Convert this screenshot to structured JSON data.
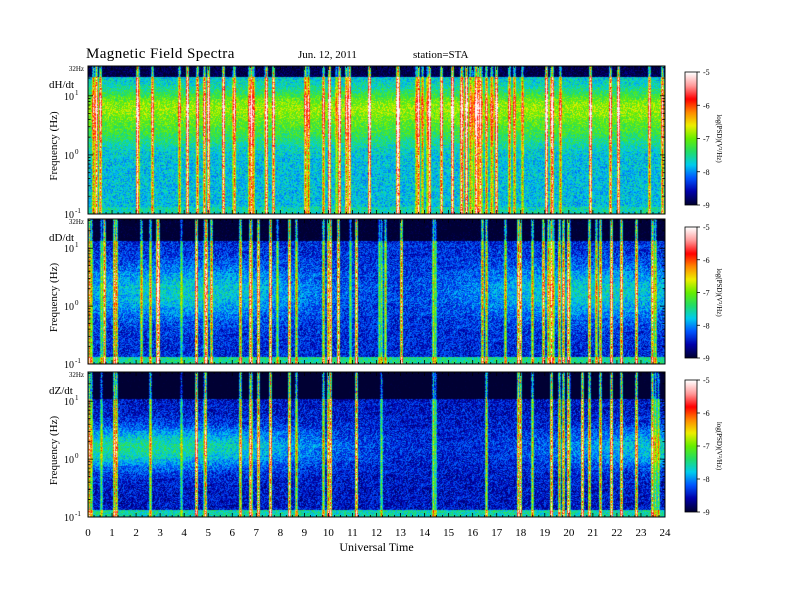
{
  "header": {
    "title": "Magnetic Field Spectra",
    "date": "Jun. 12, 2011",
    "station": "station=STA"
  },
  "chart_data": {
    "type": "heatmap",
    "x_label": "Universal Time",
    "x_range": [
      0,
      24
    ],
    "x_ticks": [
      "0",
      "1",
      "2",
      "3",
      "4",
      "5",
      "6",
      "7",
      "8",
      "9",
      "10",
      "11",
      "12",
      "13",
      "14",
      "15",
      "16",
      "17",
      "18",
      "19",
      "20",
      "21",
      "22",
      "23",
      "24"
    ],
    "y_scale": "log",
    "y_range_hz": [
      0.1,
      32
    ],
    "y_ticks": [
      {
        "value": 10,
        "base": "10",
        "exp": "1"
      },
      {
        "value": 1,
        "base": "10",
        "exp": "0"
      },
      {
        "value": 0.1,
        "base": "10",
        "exp": "-1"
      }
    ],
    "y_top_label": "32Hz",
    "colorbar": {
      "label": "log(PSD)(V²/Hz)",
      "range": [
        -9,
        -5
      ],
      "ticks": [
        "-5",
        "-6",
        "-7",
        "-8",
        "-9"
      ],
      "colormap": [
        "#000033",
        "#0000aa",
        "#0055ff",
        "#00ccee",
        "#22dd66",
        "#66ee00",
        "#eeee00",
        "#ff8800",
        "#ff0000",
        "#ff9999",
        "#ffffff"
      ]
    },
    "panels": [
      {
        "name": "dH/dt",
        "ylabel": "Frequency (Hz)",
        "base_level": -7.8
      },
      {
        "name": "dD/dt",
        "ylabel": "Frequency (Hz)",
        "base_level": -8.4
      },
      {
        "name": "dZ/dt",
        "ylabel": "Frequency (Hz)",
        "base_level": -8.5
      }
    ]
  }
}
